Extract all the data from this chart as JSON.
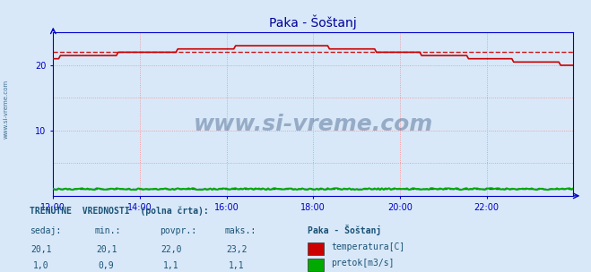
{
  "title": "Paka - Šoštanj",
  "bg_color": "#d8e8f8",
  "plot_bg_color": "#d8e8f8",
  "grid_color": "#ff8888",
  "x_min": 0,
  "x_max": 288,
  "y_min": 0,
  "y_max": 25,
  "y_ticks": [
    10,
    20
  ],
  "x_tick_positions": [
    0,
    48,
    96,
    144,
    192,
    240
  ],
  "x_tick_labels": [
    "12:00",
    "14:00",
    "16:00",
    "18:00",
    "20:00",
    "22:00"
  ],
  "temp_avg": 22.0,
  "flow_avg": 1.1,
  "temp_color": "#cc0000",
  "flow_color": "#00aa00",
  "temp_avg_color": "#cc0000",
  "flow_avg_color": "#0000cc",
  "watermark": "www.si-vreme.com",
  "watermark_color": "#1a3a6a",
  "side_text": "www.si-vreme.com",
  "side_text_color": "#1a5276",
  "title_color": "#000099",
  "axis_color": "#0000cc",
  "table_header": "TRENUTNE  VREDNOSTI  (polna črta):",
  "table_cols": [
    "sedaj:",
    "min.:",
    "povpr.:",
    "maks.:"
  ],
  "table_col_extra": "Paka - Šoštanj",
  "legend_entries": [
    "temperatura[C]",
    "pretok[m3/s]"
  ],
  "legend_colors": [
    "#cc0000",
    "#00aa00"
  ],
  "table_color": "#1a5276",
  "row1_vals": [
    "20,1",
    "20,1",
    "22,0",
    "23,2"
  ],
  "row2_vals": [
    "1,0",
    "0,9",
    "1,1",
    "1,1"
  ]
}
